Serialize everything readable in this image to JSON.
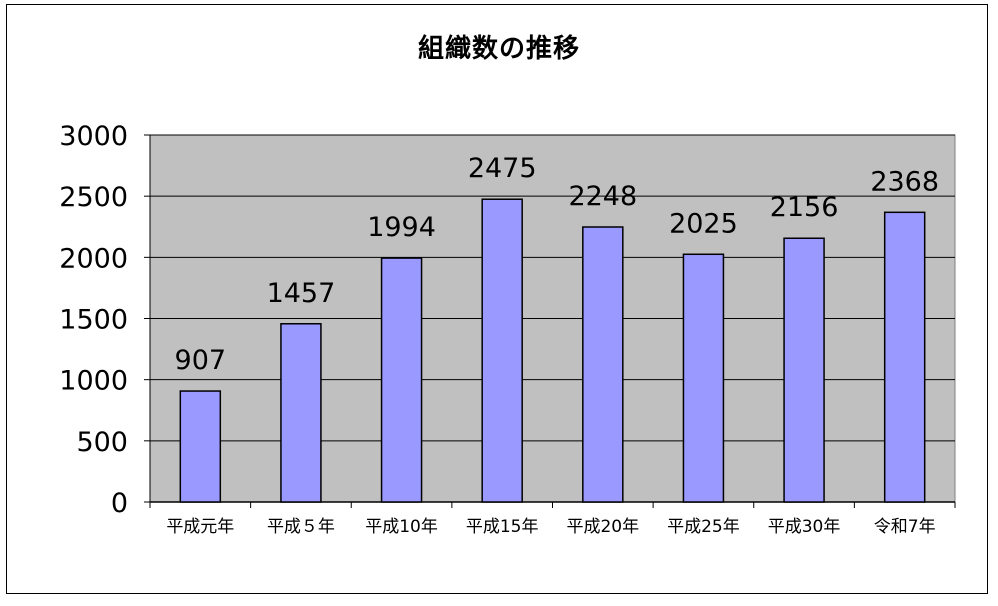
{
  "chart_data": {
    "type": "bar",
    "title": "組織数の推移",
    "xlabel": "",
    "ylabel": "",
    "categories": [
      "平成元年",
      "平成５年",
      "平成10年",
      "平成15年",
      "平成20年",
      "平成25年",
      "平成30年",
      "令和7年"
    ],
    "values": [
      907,
      1457,
      1994,
      2475,
      2248,
      2025,
      2156,
      2368
    ],
    "ylim": [
      0,
      3000
    ],
    "yticks": [
      0,
      500,
      1000,
      1500,
      2000,
      2500,
      3000
    ],
    "grid": true,
    "legend": "none",
    "colors": {
      "bar": "#9999ff",
      "plot_bg": "#c0c0c0",
      "grid": "#000000"
    }
  }
}
